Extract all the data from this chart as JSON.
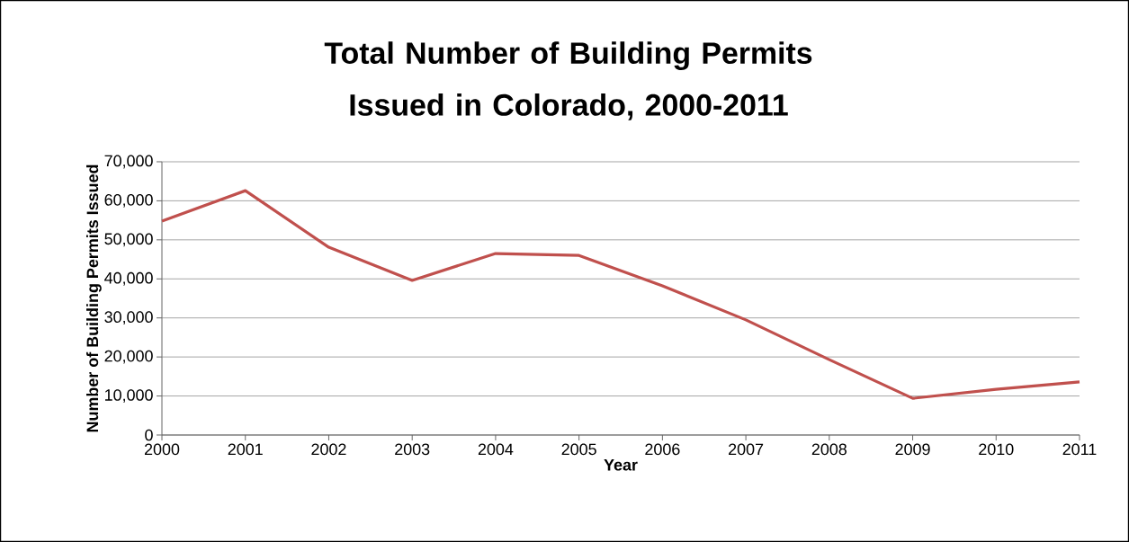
{
  "chart_data": {
    "type": "line",
    "title": "Total Number of Building Permits Issued in Colorado, 2000-2011",
    "xlabel": "Year",
    "ylabel": "Number of Building Permits Issued",
    "categories": [
      "2000",
      "2001",
      "2002",
      "2003",
      "2004",
      "2005",
      "2006",
      "2007",
      "2008",
      "2009",
      "2010",
      "2011"
    ],
    "series": [
      {
        "color": "#c0504d",
        "values": [
          54800,
          62600,
          48100,
          39600,
          46500,
          46000,
          38200,
          29500,
          19300,
          9400,
          11700,
          13600
        ]
      }
    ],
    "ylim": [
      0,
      70000
    ],
    "yticks": [
      0,
      {
        "value": 10000,
        "label": "10,000"
      },
      {
        "value": 20000,
        "label": "20,000"
      },
      {
        "value": 30000,
        "label": "30,000"
      },
      {
        "value": 40000,
        "label": "40,000"
      },
      {
        "value": 50000,
        "label": "50,000"
      },
      {
        "value": 60000,
        "label": "60,000"
      },
      {
        "value": 70000,
        "label": "70,000"
      }
    ],
    "grid": "y",
    "marker": "none",
    "line_style": "solid"
  }
}
